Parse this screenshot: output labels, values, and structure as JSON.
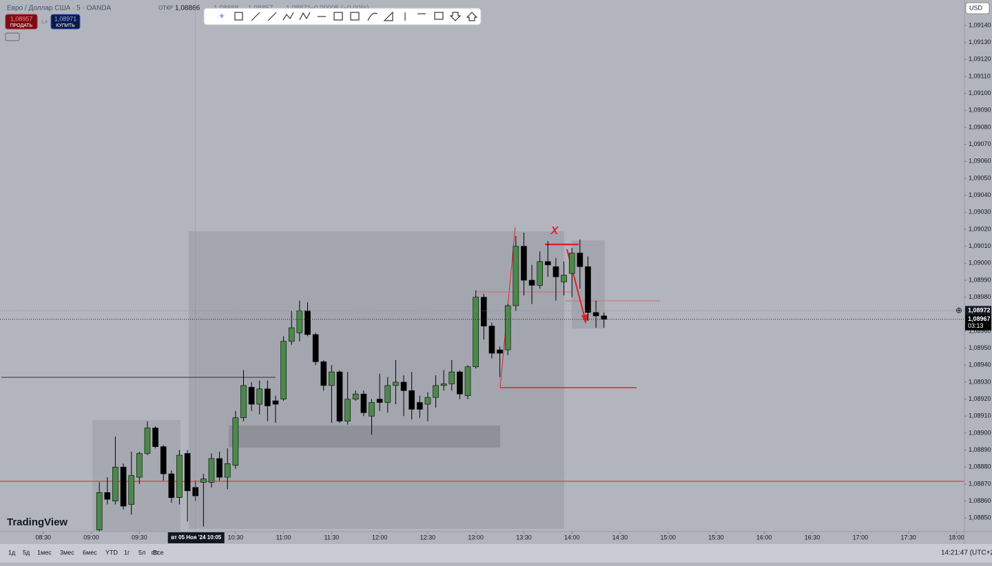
{
  "header": {
    "symbol": "Евро / Доллар США · 5 · OANDA",
    "open_label": "ОТКР",
    "open": "1,08866",
    "ohlc": [
      "1,08888",
      "1,08857",
      "1,08871",
      "−0,00005 (−0,00%)"
    ]
  },
  "trade": {
    "sell_price": "1,08957",
    "sell_label": "ПРОДАТЬ",
    "spread": "1,4",
    "buy_price": "1,08971",
    "buy_label": "КУПИТЬ"
  },
  "logo": "TradingView",
  "chart_data": {
    "type": "candlestick",
    "x": [
      "09:05",
      "09:10",
      "09:15",
      "09:20",
      "09:25",
      "09:30",
      "09:35",
      "09:40",
      "09:45",
      "09:50",
      "09:55",
      "10:00",
      "10:05",
      "10:10",
      "10:15",
      "10:20",
      "10:25",
      "10:30",
      "10:35",
      "10:40",
      "10:45",
      "10:50",
      "10:55",
      "11:00",
      "11:05",
      "11:10",
      "11:15",
      "11:20",
      "11:25",
      "11:30",
      "11:35",
      "11:40",
      "11:45",
      "11:50",
      "11:55",
      "12:00",
      "12:05",
      "12:10",
      "12:15",
      "12:20",
      "12:25",
      "12:30",
      "12:35",
      "12:40",
      "12:45",
      "12:50",
      "12:55",
      "13:00",
      "13:05",
      "13:10",
      "13:15",
      "13:20",
      "13:25",
      "13:30",
      "13:35",
      "13:40",
      "13:45",
      "13:50",
      "13:55",
      "14:00",
      "14:05",
      "14:10",
      "14:15",
      "14:20"
    ],
    "open": [
      1.08843,
      1.08865,
      1.0886,
      1.0888,
      1.08858,
      1.08874,
      1.08888,
      1.08903,
      1.08892,
      1.08876,
      1.08862,
      1.08888,
      1.08868,
      1.08871,
      1.08871,
      1.08885,
      1.08874,
      1.08881,
      1.08909,
      1.08927,
      1.08917,
      1.08926,
      1.08919,
      1.0892,
      1.08954,
      1.08959,
      1.08972,
      1.08958,
      1.08942,
      1.08928,
      1.08936,
      1.08907,
      1.0892,
      1.08923,
      1.0891,
      1.0892,
      1.08918,
      1.08928,
      1.0893,
      1.08925,
      1.08918,
      1.08917,
      1.08921,
      1.08928,
      1.08929,
      1.08936,
      1.08922,
      1.08939,
      1.0898,
      1.08963,
      1.08949,
      1.08949,
      1.08975,
      1.0901,
      1.0899,
      1.08987,
      1.09001,
      1.08998,
      1.08989,
      1.08994,
      1.09006,
      1.08998,
      1.08971,
      1.08969
    ],
    "high": [
      1.08871,
      1.08874,
      1.08898,
      1.08882,
      1.08889,
      1.08889,
      1.08907,
      1.08904,
      1.08893,
      1.08878,
      1.0889,
      1.0889,
      1.08872,
      1.08876,
      1.08888,
      1.08889,
      1.08891,
      1.08913,
      1.08937,
      1.0893,
      1.08931,
      1.08931,
      1.08922,
      1.08957,
      1.08972,
      1.08978,
      1.08977,
      1.08959,
      1.08943,
      1.0894,
      1.08937,
      1.08936,
      1.08925,
      1.08925,
      1.0892,
      1.08935,
      1.08933,
      1.08943,
      1.08934,
      1.08936,
      1.08922,
      1.08924,
      1.08934,
      1.08937,
      1.08943,
      1.08937,
      1.0894,
      1.08984,
      1.08982,
      1.08965,
      1.08951,
      1.08976,
      1.09016,
      1.09018,
      1.08999,
      1.09007,
      1.09013,
      1.09003,
      1.09001,
      1.09009,
      1.09014,
      1.09004,
      1.08978,
      1.08971
    ],
    "low": [
      1.08842,
      1.08858,
      1.08858,
      1.08855,
      1.08852,
      1.0887,
      1.08887,
      1.08891,
      1.08872,
      1.08859,
      1.08858,
      1.08848,
      1.0886,
      1.08845,
      1.08868,
      1.08872,
      1.08867,
      1.08879,
      1.08907,
      1.08913,
      1.08911,
      1.08907,
      1.08906,
      1.08919,
      1.08952,
      1.08954,
      1.08957,
      1.0894,
      1.08925,
      1.08906,
      1.08906,
      1.08905,
      1.08919,
      1.0891,
      1.08899,
      1.08913,
      1.08912,
      1.08917,
      1.0891,
      1.08908,
      1.08909,
      1.08907,
      1.08915,
      1.08925,
      1.08925,
      1.0892,
      1.0892,
      1.08938,
      1.08955,
      1.08944,
      1.08933,
      1.08946,
      1.08972,
      1.08981,
      1.08976,
      1.08985,
      1.08992,
      1.08978,
      1.08981,
      1.0898,
      1.08985,
      1.08966,
      1.08962,
      1.08962
    ],
    "close": [
      1.08865,
      1.08861,
      1.0888,
      1.08857,
      1.08875,
      1.08888,
      1.08903,
      1.08892,
      1.08876,
      1.08862,
      1.08887,
      1.08866,
      1.08863,
      1.08873,
      1.08885,
      1.08874,
      1.08882,
      1.08909,
      1.08928,
      1.08917,
      1.08926,
      1.08916,
      1.08917,
      1.08954,
      1.08962,
      1.08972,
      1.08958,
      1.08942,
      1.08928,
      1.08936,
      1.08907,
      1.0892,
      1.08923,
      1.08912,
      1.08918,
      1.08918,
      1.08928,
      1.0893,
      1.08925,
      1.08914,
      1.08914,
      1.08921,
      1.08928,
      1.08929,
      1.08936,
      1.08923,
      1.08939,
      1.0898,
      1.08963,
      1.08947,
      1.08947,
      1.08975,
      1.0901,
      1.0899,
      1.08987,
      1.09001,
      1.08999,
      1.08992,
      1.08993,
      1.09006,
      1.08998,
      1.08971,
      1.08969,
      1.08967
    ],
    "color_up": "#4a8a48",
    "color_down": "#000000",
    "xlim": [
      "08:03",
      "18:05"
    ],
    "xticks": [
      "08:30",
      "09:00",
      "09:30",
      "10:30",
      "11:00",
      "11:30",
      "12:00",
      "12:30",
      "13:00",
      "13:30",
      "14:00",
      "14:30",
      "15:00",
      "15:30",
      "16:00",
      "16:30",
      "17:00",
      "17:30",
      "18:00"
    ],
    "ylim": [
      1.08842,
      1.09155
    ],
    "yticks": [
      {
        "value": 1.0914,
        "label": "1,09140"
      },
      {
        "value": 1.0913,
        "label": "1,09130"
      },
      {
        "value": 1.0912,
        "label": "1,09120"
      },
      {
        "value": 1.0911,
        "label": "1,09110"
      },
      {
        "value": 1.091,
        "label": "1,09100"
      },
      {
        "value": 1.0909,
        "label": "1,09090"
      },
      {
        "value": 1.0908,
        "label": "1,09080"
      },
      {
        "value": 1.0907,
        "label": "1,09070"
      },
      {
        "value": 1.0906,
        "label": "1,09060"
      },
      {
        "value": 1.0905,
        "label": "1,09050"
      },
      {
        "value": 1.0904,
        "label": "1,09040"
      },
      {
        "value": 1.0903,
        "label": "1,09030"
      },
      {
        "value": 1.0902,
        "label": "1,09020"
      },
      {
        "value": 1.0901,
        "label": "1,09010"
      },
      {
        "value": 1.09,
        "label": "1,09000"
      },
      {
        "value": 1.0899,
        "label": "1,08990"
      },
      {
        "value": 1.0898,
        "label": "1,08980"
      },
      {
        "value": 1.0896,
        "label": "1,08960"
      },
      {
        "value": 1.0895,
        "label": "1,08950"
      },
      {
        "value": 1.0894,
        "label": "1,08940"
      },
      {
        "value": 1.0893,
        "label": "1,08930"
      },
      {
        "value": 1.0892,
        "label": "1,08920"
      },
      {
        "value": 1.0891,
        "label": "1,08910"
      },
      {
        "value": 1.089,
        "label": "1,08900"
      },
      {
        "value": 1.0889,
        "label": "1,08890"
      },
      {
        "value": 1.0888,
        "label": "1,08880"
      },
      {
        "value": 1.0887,
        "label": "1,08870"
      },
      {
        "value": 1.0886,
        "label": "1,08860"
      },
      {
        "value": 1.0885,
        "label": "1,08850"
      }
    ],
    "currency": "USD",
    "crosshair": {
      "x_label": "вт 05 Ноя '24  10:05",
      "x": "10:05",
      "y": {
        "value": 1.08972,
        "label": "1,08972"
      }
    },
    "last_price": {
      "value": 1.08967,
      "label": "1,08967"
    },
    "countdown": "03:13",
    "annotation": "X"
  },
  "bottom": {
    "periods": [
      "1д",
      "5д",
      "1мес",
      "3мес",
      "6мес",
      "YTD",
      "1г",
      "5л",
      "Все"
    ],
    "clock": "14:21:47 (UTC+2)"
  }
}
